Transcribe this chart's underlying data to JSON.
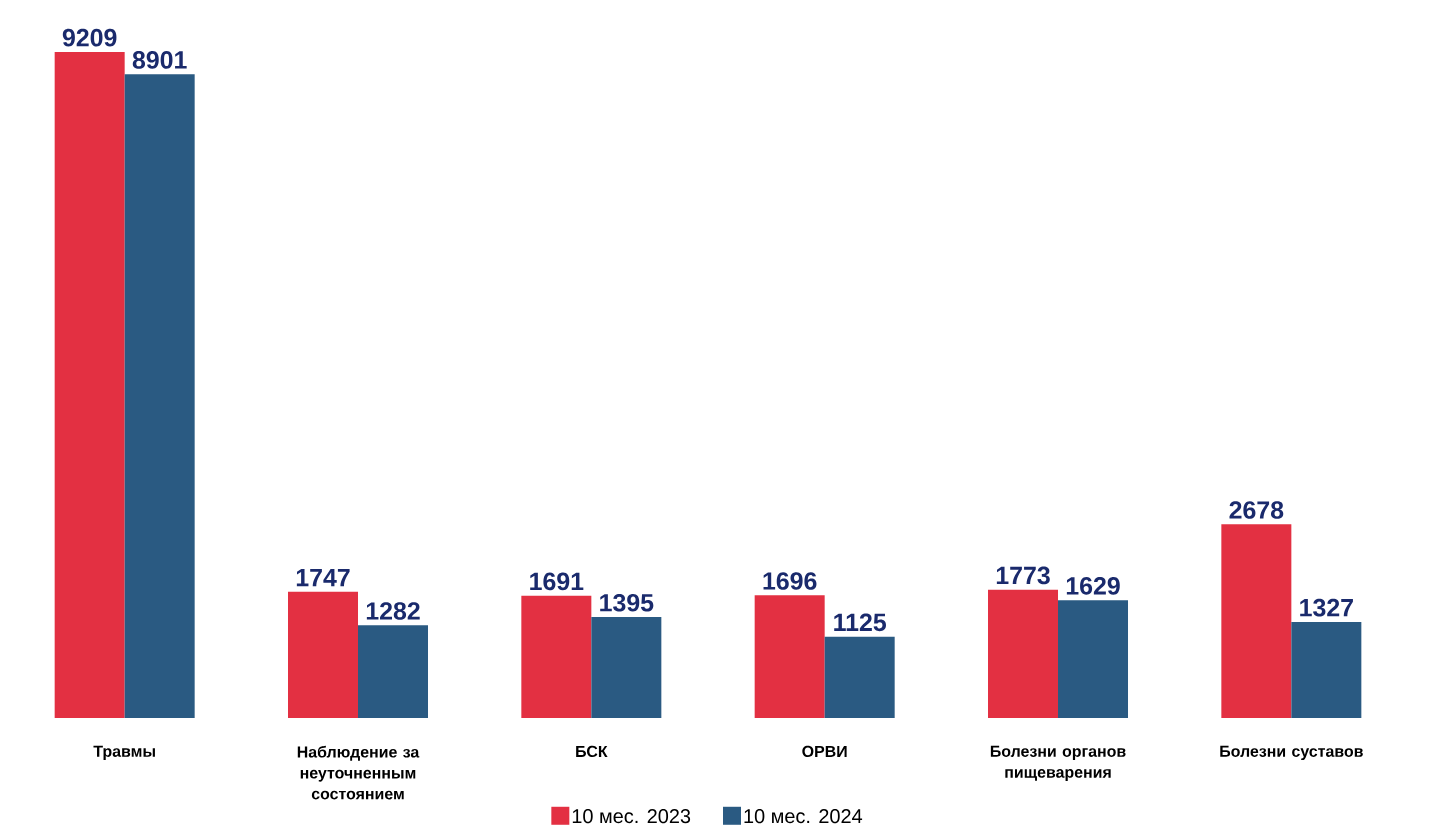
{
  "chart_data": {
    "type": "bar",
    "categories": [
      "Травмы",
      "Наблюдение за неуточненным состоянием",
      "БСК",
      "ОРВИ",
      "Болезни органов пищеварения",
      "Болезни суставов"
    ],
    "series": [
      {
        "name": "10 мес. 2023",
        "color": "#e33042",
        "values": [
          9209,
          1747,
          1691,
          1696,
          1773,
          2678
        ]
      },
      {
        "name": "10 мес. 2024",
        "color": "#2a5a82",
        "values": [
          8901,
          1282,
          1395,
          1125,
          1629,
          1327
        ]
      }
    ],
    "data_labels": true,
    "legend": "bottom"
  }
}
